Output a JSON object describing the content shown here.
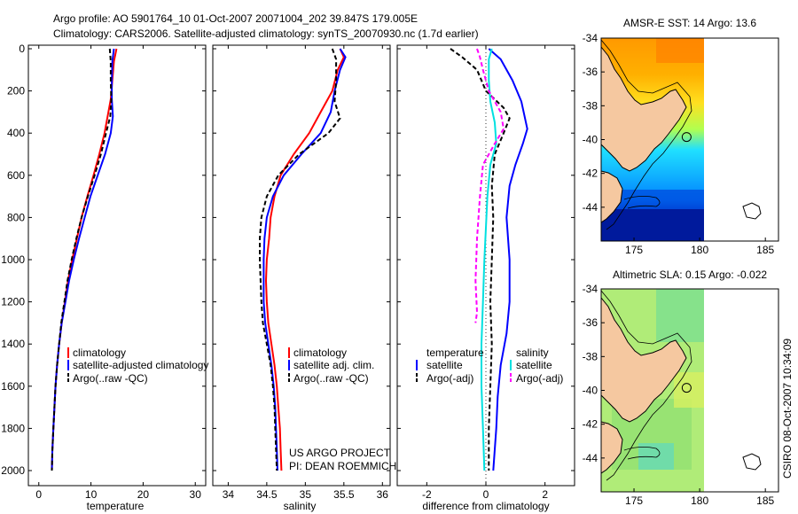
{
  "header": {
    "line1": "Argo profile: AO 5901764_10 01-Oct-2007 20071004_202 39.847S 179.005E",
    "line2": "Climatology: CARS2006. Satellite-adjusted climatology: synTS_20070930.nc (1.7d earlier)"
  },
  "side_label": "CSIRO 08-Oct-2007 10:34:09",
  "colors": {
    "red": "#ff0000",
    "blue": "#0000ff",
    "black": "#000000",
    "cyan": "#00e0e0",
    "magenta": "#ff00ff",
    "land": "#f5c8a0",
    "nodata": "#ffffff"
  },
  "chart_data": [
    {
      "id": "temperature",
      "type": "line",
      "xlabel": "temperature",
      "xlim": [
        -2,
        32
      ],
      "ylim": [
        0,
        2050
      ],
      "xticks": [
        "0",
        "10",
        "20",
        "30"
      ],
      "xtick_values": [
        0,
        10,
        20,
        30
      ],
      "yticks": [
        "0",
        "200",
        "400",
        "600",
        "800",
        "1000",
        "1200",
        "1400",
        "1600",
        "1800",
        "2000"
      ],
      "ytick_values": [
        0,
        200,
        400,
        600,
        800,
        1000,
        1200,
        1400,
        1600,
        1800,
        2000
      ],
      "legend": [
        {
          "label": "climatology",
          "color": "#ff0000",
          "dash": false
        },
        {
          "label": "satellite-adjusted climatology",
          "color": "#0000ff",
          "dash": false
        },
        {
          "label": "Argo(..raw -QC)",
          "color": "#000000",
          "dash": true
        }
      ],
      "series": [
        {
          "name": "climatology",
          "color": "#ff0000",
          "dash": false,
          "points": [
            [
              14.9,
              0
            ],
            [
              14.4,
              60
            ],
            [
              14.1,
              150
            ],
            [
              13.8,
              240
            ],
            [
              13.2,
              320
            ],
            [
              12.6,
              400
            ],
            [
              11.6,
              500
            ],
            [
              10.5,
              600
            ],
            [
              9.3,
              700
            ],
            [
              8.2,
              800
            ],
            [
              7.3,
              900
            ],
            [
              6.4,
              1000
            ],
            [
              5.6,
              1100
            ],
            [
              5.0,
              1200
            ],
            [
              4.4,
              1300
            ],
            [
              3.9,
              1400
            ],
            [
              3.5,
              1500
            ],
            [
              3.2,
              1600
            ],
            [
              3.0,
              1700
            ],
            [
              2.8,
              1800
            ],
            [
              2.6,
              1900
            ],
            [
              2.5,
              2000
            ]
          ]
        },
        {
          "name": "satellite-adjusted climatology",
          "color": "#0000ff",
          "dash": false,
          "points": [
            [
              14.4,
              0
            ],
            [
              14.1,
              60
            ],
            [
              14.0,
              150
            ],
            [
              14.0,
              240
            ],
            [
              14.2,
              320
            ],
            [
              13.8,
              400
            ],
            [
              12.7,
              500
            ],
            [
              11.3,
              600
            ],
            [
              9.9,
              700
            ],
            [
              8.8,
              800
            ],
            [
              7.7,
              900
            ],
            [
              6.7,
              1000
            ],
            [
              5.8,
              1100
            ],
            [
              5.1,
              1200
            ],
            [
              4.4,
              1300
            ],
            [
              3.9,
              1400
            ],
            [
              3.5,
              1500
            ],
            [
              3.2,
              1600
            ],
            [
              3.0,
              1700
            ],
            [
              2.8,
              1800
            ],
            [
              2.6,
              1900
            ],
            [
              2.5,
              2000
            ]
          ]
        },
        {
          "name": "Argo(..raw -QC)",
          "color": "#000000",
          "dash": true,
          "points": [
            [
              13.6,
              0
            ],
            [
              13.8,
              60
            ],
            [
              13.8,
              150
            ],
            [
              13.9,
              240
            ],
            [
              13.7,
              320
            ],
            [
              12.9,
              400
            ],
            [
              11.9,
              500
            ],
            [
              10.7,
              600
            ],
            [
              9.4,
              700
            ],
            [
              8.2,
              800
            ],
            [
              7.2,
              900
            ],
            [
              6.3,
              1000
            ],
            [
              5.5,
              1100
            ],
            [
              4.9,
              1200
            ],
            [
              4.3,
              1300
            ],
            [
              3.9,
              1400
            ],
            [
              3.5,
              1500
            ],
            [
              3.2,
              1600
            ],
            [
              3.0,
              1700
            ],
            [
              2.8,
              1800
            ],
            [
              2.6,
              1900
            ],
            [
              2.5,
              2000
            ]
          ]
        }
      ]
    },
    {
      "id": "salinity",
      "type": "line",
      "xlabel": "salinity",
      "xlim": [
        33.8,
        36.1
      ],
      "ylim": [
        0,
        2050
      ],
      "xticks": [
        "34",
        "34.5",
        "35",
        "35.5",
        "36"
      ],
      "xtick_values": [
        34,
        34.5,
        35,
        35.5,
        36
      ],
      "legend": [
        {
          "label": "climatology",
          "color": "#ff0000",
          "dash": false
        },
        {
          "label": "satellite adj. clim.",
          "color": "#0000ff",
          "dash": false
        },
        {
          "label": "Argo(..raw -QC)",
          "color": "#000000",
          "dash": true
        }
      ],
      "annotation": [
        "US ARGO PROJECT",
        "PI: DEAN ROEMMICH"
      ],
      "series": [
        {
          "name": "climatology",
          "color": "#ff0000",
          "dash": false,
          "points": [
            [
              35.45,
              0
            ],
            [
              35.5,
              40
            ],
            [
              35.42,
              100
            ],
            [
              35.35,
              200
            ],
            [
              35.2,
              300
            ],
            [
              35.05,
              400
            ],
            [
              34.85,
              500
            ],
            [
              34.68,
              600
            ],
            [
              34.6,
              700
            ],
            [
              34.55,
              800
            ],
            [
              34.53,
              900
            ],
            [
              34.5,
              1000
            ],
            [
              34.49,
              1100
            ],
            [
              34.5,
              1200
            ],
            [
              34.52,
              1300
            ],
            [
              34.56,
              1400
            ],
            [
              34.6,
              1500
            ],
            [
              34.63,
              1600
            ],
            [
              34.65,
              1700
            ],
            [
              34.67,
              1800
            ],
            [
              34.68,
              1900
            ],
            [
              34.69,
              2000
            ]
          ]
        },
        {
          "name": "satellite adj. clim.",
          "color": "#0000ff",
          "dash": false,
          "points": [
            [
              35.45,
              0
            ],
            [
              35.52,
              40
            ],
            [
              35.45,
              100
            ],
            [
              35.38,
              200
            ],
            [
              35.33,
              300
            ],
            [
              35.2,
              400
            ],
            [
              34.95,
              500
            ],
            [
              34.72,
              600
            ],
            [
              34.58,
              700
            ],
            [
              34.5,
              800
            ],
            [
              34.47,
              900
            ],
            [
              34.46,
              1000
            ],
            [
              34.46,
              1100
            ],
            [
              34.46,
              1200
            ],
            [
              34.48,
              1300
            ],
            [
              34.52,
              1400
            ],
            [
              34.56,
              1500
            ],
            [
              34.59,
              1600
            ],
            [
              34.61,
              1700
            ],
            [
              34.62,
              1800
            ],
            [
              34.63,
              1900
            ],
            [
              34.64,
              2000
            ]
          ]
        },
        {
          "name": "Argo(..raw -QC)",
          "color": "#000000",
          "dash": true,
          "points": [
            [
              35.35,
              0
            ],
            [
              35.4,
              50
            ],
            [
              35.4,
              150
            ],
            [
              35.38,
              250
            ],
            [
              35.45,
              330
            ],
            [
              35.3,
              400
            ],
            [
              34.92,
              500
            ],
            [
              34.65,
              600
            ],
            [
              34.5,
              700
            ],
            [
              34.43,
              800
            ],
            [
              34.41,
              900
            ],
            [
              34.41,
              1000
            ],
            [
              34.42,
              1100
            ],
            [
              34.43,
              1200
            ],
            [
              34.45,
              1300
            ],
            [
              34.5,
              1400
            ],
            [
              34.55,
              1500
            ],
            [
              34.58,
              1600
            ],
            [
              34.6,
              1700
            ],
            [
              34.61,
              1800
            ],
            [
              34.62,
              1900
            ],
            [
              34.63,
              2000
            ]
          ]
        }
      ]
    },
    {
      "id": "difference",
      "type": "line",
      "xlabel": "difference from climatology",
      "xlim": [
        -3,
        3
      ],
      "ylim": [
        0,
        2050
      ],
      "xticks": [
        "-2",
        "0",
        "2"
      ],
      "xtick_values": [
        -2,
        0,
        2
      ],
      "zero_line": true,
      "legend_left": {
        "title": "temperature",
        "entries": [
          {
            "label": "satellite",
            "color": "#0000ff",
            "dash": false
          },
          {
            "label": "Argo(-adj)",
            "color": "#000000",
            "dash": true
          }
        ]
      },
      "legend_right": {
        "title": "salinity",
        "entries": [
          {
            "label": "satellite",
            "color": "#00e0e0",
            "dash": false
          },
          {
            "label": "Argo(-adj)",
            "color": "#ff00ff",
            "dash": true
          }
        ]
      },
      "series": [
        {
          "name": "temperature satellite",
          "color": "#0000ff",
          "dash": false,
          "points": [
            [
              0.1,
              0
            ],
            [
              0.5,
              50
            ],
            [
              0.9,
              150
            ],
            [
              1.2,
              250
            ],
            [
              1.4,
              380
            ],
            [
              1.25,
              450
            ],
            [
              1.0,
              550
            ],
            [
              0.8,
              650
            ],
            [
              0.7,
              800
            ],
            [
              0.8,
              1000
            ],
            [
              0.8,
              1200
            ],
            [
              0.7,
              1350
            ],
            [
              0.5,
              1500
            ],
            [
              0.4,
              1650
            ],
            [
              0.35,
              1800
            ],
            [
              0.3,
              1900
            ],
            [
              0.25,
              2000
            ]
          ]
        },
        {
          "name": "temperature Argo(-adj)",
          "color": "#000000",
          "dash": true,
          "points": [
            [
              -1.2,
              0
            ],
            [
              -0.8,
              40
            ],
            [
              -0.3,
              100
            ],
            [
              0.0,
              200
            ],
            [
              0.6,
              280
            ],
            [
              0.8,
              330
            ],
            [
              0.6,
              400
            ],
            [
              0.3,
              500
            ],
            [
              0.2,
              650
            ],
            [
              0.25,
              800
            ],
            [
              0.2,
              1000
            ],
            [
              0.15,
              1200
            ],
            [
              0.2,
              1400
            ],
            [
              0.15,
              1600
            ],
            [
              0.1,
              1800
            ],
            [
              0.1,
              2000
            ]
          ]
        },
        {
          "name": "salinity satellite",
          "color": "#00e0e0",
          "dash": false,
          "points": [
            [
              0.2,
              0
            ],
            [
              0.1,
              50
            ],
            [
              0.1,
              150
            ],
            [
              0.15,
              250
            ],
            [
              0.3,
              350
            ],
            [
              0.35,
              450
            ],
            [
              0.15,
              550
            ],
            [
              0.05,
              700
            ],
            [
              0.0,
              850
            ],
            [
              -0.05,
              1000
            ],
            [
              -0.1,
              1200
            ],
            [
              -0.15,
              1400
            ],
            [
              -0.15,
              1600
            ],
            [
              -0.1,
              1800
            ],
            [
              -0.05,
              2000
            ]
          ]
        },
        {
          "name": "salinity Argo(-adj)",
          "color": "#ff00ff",
          "dash": true,
          "points": [
            [
              -0.3,
              0
            ],
            [
              -0.2,
              40
            ],
            [
              -0.1,
              100
            ],
            [
              0.1,
              200
            ],
            [
              0.5,
              300
            ],
            [
              0.6,
              380
            ],
            [
              0.3,
              450
            ],
            [
              -0.1,
              550
            ],
            [
              -0.2,
              700
            ],
            [
              -0.3,
              900
            ],
            [
              -0.35,
              1100
            ],
            [
              -0.3,
              1250
            ],
            [
              -0.35,
              1300
            ]
          ]
        }
      ]
    },
    {
      "id": "sst_map",
      "type": "heatmap",
      "title": "AMSR-E SST: 14 Argo: 13.6",
      "xlim": [
        172.5,
        186
      ],
      "ylim": [
        -46,
        -34
      ],
      "xticks": [
        "175",
        "180",
        "185"
      ],
      "xtick_values": [
        175,
        180,
        185
      ],
      "yticks": [
        "-34",
        "-36",
        "-38",
        "-40",
        "-42",
        "-44"
      ],
      "ytick_values": [
        -34,
        -36,
        -38,
        -40,
        -42,
        -44
      ],
      "data_extent_lon": [
        172.5,
        180
      ],
      "argo_position": [
        179.005,
        -39.847
      ],
      "colormap": "jet"
    },
    {
      "id": "sla_map",
      "type": "heatmap",
      "title": "Altimetric SLA: 0.15 Argo: -0.022",
      "xlim": [
        172.5,
        186
      ],
      "ylim": [
        -46,
        -34
      ],
      "xticks": [
        "175",
        "180",
        "185"
      ],
      "xtick_values": [
        175,
        180,
        185
      ],
      "yticks": [
        "-34",
        "-36",
        "-38",
        "-40",
        "-42",
        "-44"
      ],
      "ytick_values": [
        -34,
        -36,
        -38,
        -40,
        -42,
        -44
      ],
      "data_extent_lon": [
        172.5,
        180
      ],
      "argo_position": [
        179.005,
        -39.847
      ],
      "colormap": "jet"
    }
  ]
}
